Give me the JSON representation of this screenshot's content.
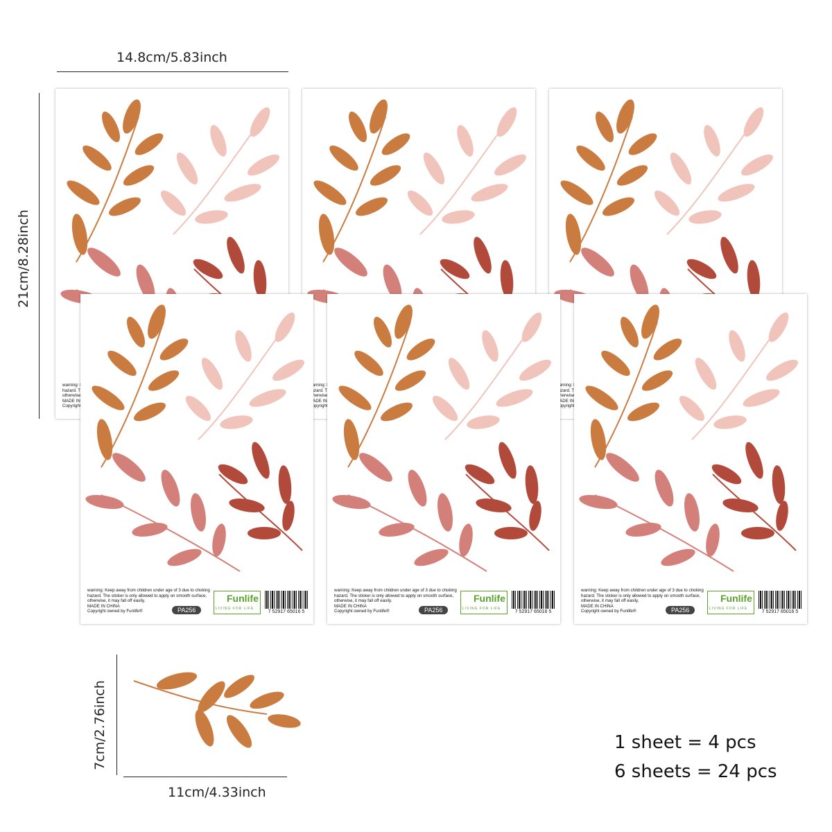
{
  "dimensions": {
    "sheet_width": "14.8cm/5.83inch",
    "sheet_height": "21cm/8.28inch",
    "leaf_height": "7cm/2.76inch",
    "leaf_width": "11cm/4.33inch"
  },
  "sheet": {
    "warning_lines": [
      "warning: Keep away from children under age of 3 due to choking",
      "hazard. The sticker is only allowed to apply on smooth surface,",
      "otherwise, it may fall off easily.",
      "MADE IN CHINA",
      "Copyright owned by Funlife®"
    ],
    "product_code": "PA256",
    "brand": "Funlife",
    "brand_tagline": "LIVING FOR LIFE",
    "barcode_number": "7 52917 65016 5"
  },
  "summary": {
    "line1": "1 sheet = 4 pcs",
    "line2": "6 sheets = 24 pcs"
  },
  "colors": {
    "ochre": "#c97b40",
    "blush": "#f0c4ba",
    "rose": "#d3807a",
    "rust": "#b24a3c",
    "logo_green": "#5aa02c"
  }
}
